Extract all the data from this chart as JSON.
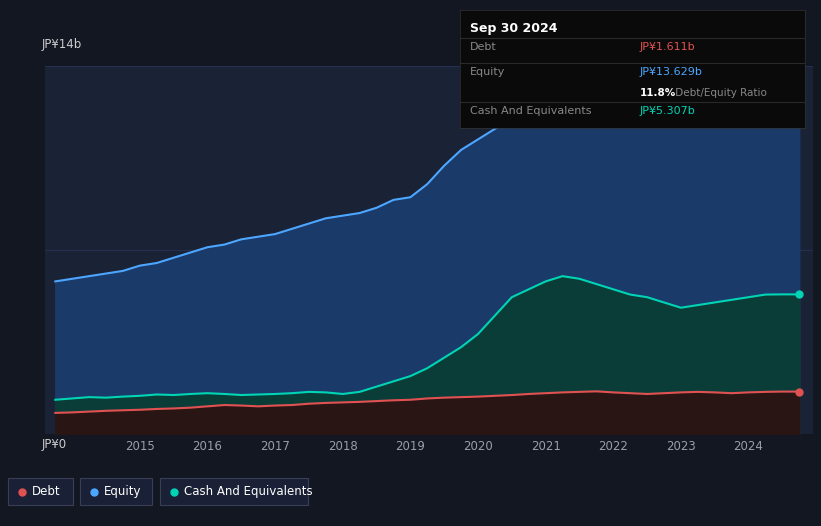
{
  "bg_color": "#131722",
  "plot_bg": "#1a2235",
  "grid_color": "#263050",
  "title_date": "Sep 30 2024",
  "debt_label": "Debt",
  "debt_value": "JP¥1.611b",
  "equity_label": "Equity",
  "equity_value": "JP¥13.629b",
  "ratio_value": "11.8%",
  "ratio_rest": " Debt/Equity Ratio",
  "cash_label": "Cash And Equivalents",
  "cash_value": "JP¥5.307b",
  "ylabel_top": "JP¥14b",
  "ylabel_bottom": "JP¥0",
  "debt_color": "#e05252",
  "equity_color": "#4da6ff",
  "cash_color": "#00d4b4",
  "equity_fill": "#1a3a6a",
  "cash_fill": "#0a3d38",
  "debt_fill": "#2a1515",
  "x_ticks": [
    "2015",
    "2016",
    "2017",
    "2018",
    "2019",
    "2020",
    "2021",
    "2022",
    "2023",
    "2024"
  ],
  "x_tick_pos": [
    2015,
    2016,
    2017,
    2018,
    2019,
    2020,
    2021,
    2022,
    2023,
    2024
  ],
  "years": [
    2013.75,
    2014.0,
    2014.25,
    2014.5,
    2014.75,
    2015.0,
    2015.25,
    2015.5,
    2015.75,
    2016.0,
    2016.25,
    2016.5,
    2016.75,
    2017.0,
    2017.25,
    2017.5,
    2017.75,
    2018.0,
    2018.25,
    2018.5,
    2018.75,
    2019.0,
    2019.25,
    2019.5,
    2019.75,
    2020.0,
    2020.25,
    2020.5,
    2020.75,
    2021.0,
    2021.25,
    2021.5,
    2021.75,
    2022.0,
    2022.25,
    2022.5,
    2022.75,
    2023.0,
    2023.25,
    2023.5,
    2023.75,
    2024.0,
    2024.25,
    2024.5,
    2024.75
  ],
  "equity": [
    5.8,
    5.9,
    6.0,
    6.1,
    6.2,
    6.4,
    6.5,
    6.7,
    6.9,
    7.1,
    7.2,
    7.4,
    7.5,
    7.6,
    7.8,
    8.0,
    8.2,
    8.3,
    8.4,
    8.6,
    8.9,
    9.0,
    9.5,
    10.2,
    10.8,
    11.2,
    11.6,
    12.0,
    12.5,
    12.9,
    13.0,
    13.1,
    13.2,
    13.3,
    13.3,
    13.4,
    13.5,
    13.5,
    13.4,
    13.5,
    13.6,
    13.629,
    13.629,
    13.629,
    13.629
  ],
  "cash": [
    1.3,
    1.35,
    1.4,
    1.38,
    1.42,
    1.45,
    1.5,
    1.48,
    1.52,
    1.55,
    1.52,
    1.48,
    1.5,
    1.52,
    1.55,
    1.6,
    1.58,
    1.52,
    1.6,
    1.8,
    2.0,
    2.2,
    2.5,
    2.9,
    3.3,
    3.8,
    4.5,
    5.2,
    5.5,
    5.8,
    6.0,
    5.9,
    5.7,
    5.5,
    5.3,
    5.2,
    5.0,
    4.8,
    4.9,
    5.0,
    5.1,
    5.2,
    5.3,
    5.307,
    5.307
  ],
  "debt": [
    0.8,
    0.82,
    0.85,
    0.88,
    0.9,
    0.92,
    0.95,
    0.97,
    1.0,
    1.05,
    1.1,
    1.08,
    1.05,
    1.08,
    1.1,
    1.15,
    1.18,
    1.2,
    1.22,
    1.25,
    1.28,
    1.3,
    1.35,
    1.38,
    1.4,
    1.42,
    1.45,
    1.48,
    1.52,
    1.55,
    1.58,
    1.6,
    1.62,
    1.58,
    1.55,
    1.52,
    1.55,
    1.58,
    1.6,
    1.58,
    1.55,
    1.58,
    1.6,
    1.611,
    1.611
  ],
  "ylim": [
    0,
    14
  ],
  "xlim_start": 2013.6,
  "xlim_end": 2024.95
}
